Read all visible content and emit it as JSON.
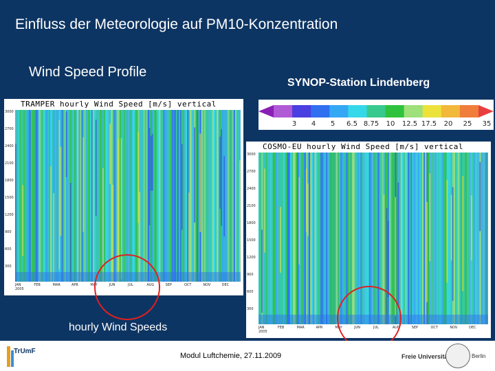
{
  "slide": {
    "title": "Einfluss der Meteorologie auf  PM10-Konzentration",
    "subtitle": "Wind Speed Profile",
    "station_label": "SYNOP-Station Lindenberg",
    "caption": "hourly Wind Speeds",
    "footer_text": "Modul Luftchemie, 27.11.2009"
  },
  "logos": {
    "left": "TrUmF",
    "right_name": "Freie Universität",
    "right_city": "Berlin"
  },
  "colorbar": {
    "ticks": [
      "3",
      "4",
      "5",
      "6.5",
      "8.75",
      "10",
      "12.5",
      "17.5",
      "20",
      "25",
      "35"
    ],
    "colors": [
      "#8a1fb5",
      "#b05ad6",
      "#4a3fe0",
      "#2f6ff0",
      "#35a8f5",
      "#35d8e8",
      "#38c98e",
      "#2fc23c",
      "#9ee07a",
      "#ece23a",
      "#f2b83a",
      "#f07e3a",
      "#e84040"
    ]
  },
  "panels": [
    {
      "title": "TRAMPER hourly Wind Speed [m/s] vertical profile",
      "y_ticks": [
        "3000",
        "2700",
        "2400",
        "2100",
        "1800",
        "1500",
        "1200",
        "900",
        "600",
        "300"
      ],
      "x_ticks": [
        "JAN\n2005",
        "FEB",
        "MAR",
        "APR",
        "MAY",
        "JUN",
        "JUL",
        "AUG",
        "SEP",
        "OCT",
        "NOV",
        "DEC"
      ]
    },
    {
      "title": "COSMO-EU hourly Wind Speed [m/s] vertical profile",
      "y_ticks": [
        "3000",
        "2700",
        "2400",
        "2100",
        "1800",
        "1500",
        "1200",
        "900",
        "600",
        "300"
      ],
      "x_ticks": [
        "JAN\n2005",
        "FEB",
        "MAR",
        "APR",
        "MAY",
        "JUN",
        "JUL",
        "AUG",
        "SEP",
        "OCT",
        "NOV",
        "DEC"
      ]
    }
  ]
}
